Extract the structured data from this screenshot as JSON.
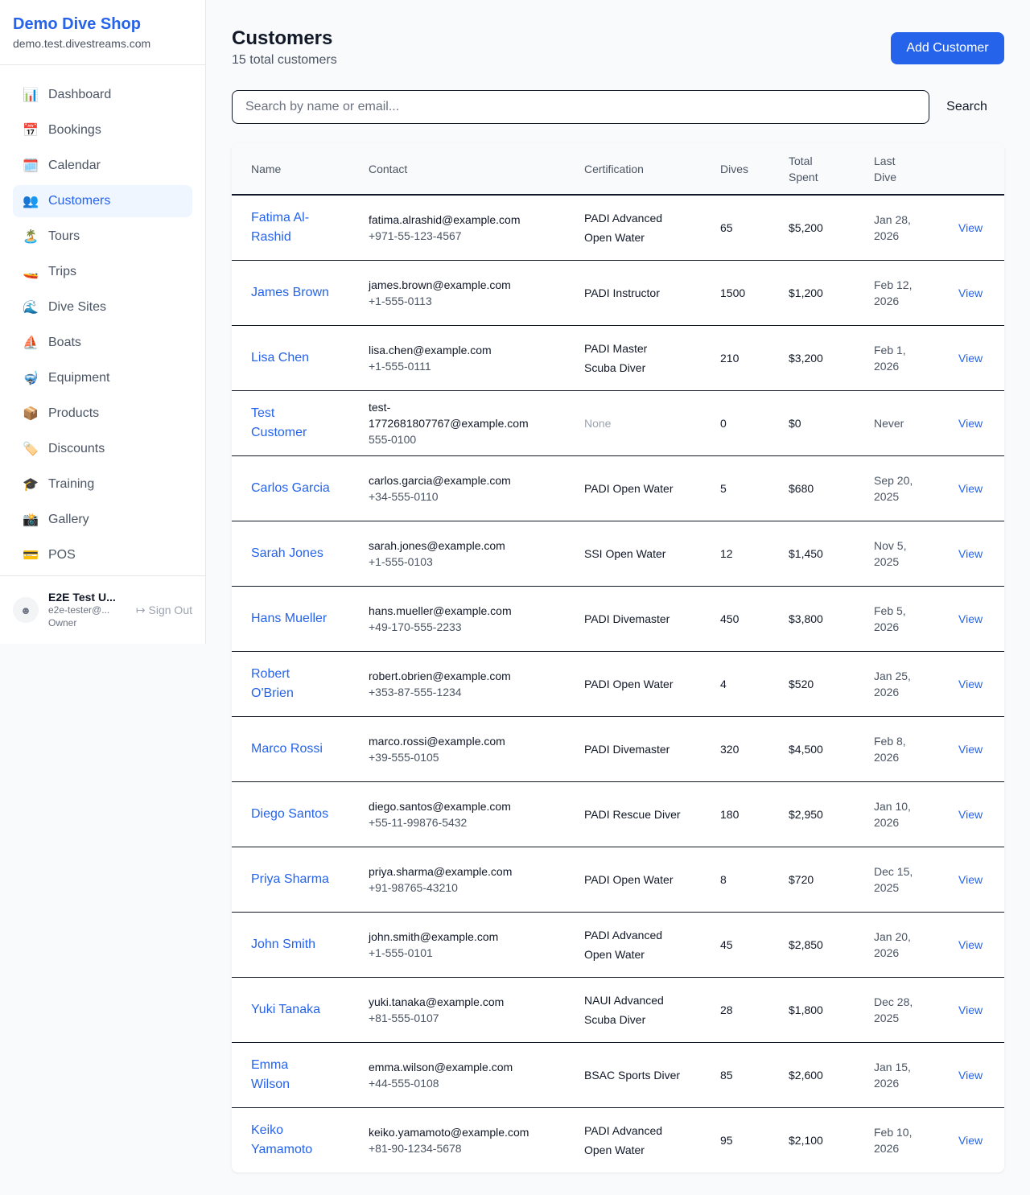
{
  "sidebar": {
    "brand": "Demo Dive Shop",
    "domain": "demo.test.divestreams.com",
    "items": [
      {
        "label": "Dashboard",
        "icon": "📊",
        "icon_name": "bar-chart-icon"
      },
      {
        "label": "Bookings",
        "icon": "📅",
        "icon_name": "calendar-date-icon"
      },
      {
        "label": "Calendar",
        "icon": "🗓️",
        "icon_name": "calendar-icon"
      },
      {
        "label": "Customers",
        "icon": "👥",
        "icon_name": "users-icon",
        "active": true
      },
      {
        "label": "Tours",
        "icon": "🏝️",
        "icon_name": "island-icon"
      },
      {
        "label": "Trips",
        "icon": "🚤",
        "icon_name": "speedboat-icon"
      },
      {
        "label": "Dive Sites",
        "icon": "🌊",
        "icon_name": "wave-icon"
      },
      {
        "label": "Boats",
        "icon": "⛵",
        "icon_name": "sailboat-icon"
      },
      {
        "label": "Equipment",
        "icon": "🤿",
        "icon_name": "diving-mask-icon"
      },
      {
        "label": "Products",
        "icon": "📦",
        "icon_name": "package-icon"
      },
      {
        "label": "Discounts",
        "icon": "🏷️",
        "icon_name": "tag-icon"
      },
      {
        "label": "Training",
        "icon": "🎓",
        "icon_name": "graduation-cap-icon"
      },
      {
        "label": "Gallery",
        "icon": "📸",
        "icon_name": "camera-icon"
      },
      {
        "label": "POS",
        "icon": "💳",
        "icon_name": "credit-card-icon"
      }
    ],
    "user": {
      "name": "E2E Test U...",
      "email": "e2e-tester@...",
      "role": "Owner",
      "sign_out": "Sign Out"
    }
  },
  "header": {
    "title": "Customers",
    "subtitle": "15 total customers",
    "add_label": "Add Customer",
    "search_placeholder": "Search by name or email...",
    "search_label": "Search"
  },
  "table": {
    "columns": [
      "Name",
      "Contact",
      "Certification",
      "Dives",
      "Total Spent",
      "Last Dive",
      ""
    ],
    "view_label": "View",
    "rows": [
      {
        "name": "Fatima Al-Rashid",
        "email": "fatima.alrashid@example.com",
        "phone": "+971-55-123-4567",
        "cert": "PADI Advanced Open Water",
        "dives": "65",
        "spent": "$5,200",
        "last": "Jan 28, 2026"
      },
      {
        "name": "James Brown",
        "email": "james.brown@example.com",
        "phone": "+1-555-0113",
        "cert": "PADI Instructor",
        "dives": "1500",
        "spent": "$1,200",
        "last": "Feb 12, 2026"
      },
      {
        "name": "Lisa Chen",
        "email": "lisa.chen@example.com",
        "phone": "+1-555-0111",
        "cert": "PADI Master Scuba Diver",
        "dives": "210",
        "spent": "$3,200",
        "last": "Feb 1, 2026"
      },
      {
        "name": "Test Customer",
        "email": "test-1772681807767@example.com",
        "phone": "555-0100",
        "cert": "None",
        "dives": "0",
        "spent": "$0",
        "last": "Never"
      },
      {
        "name": "Carlos Garcia",
        "email": "carlos.garcia@example.com",
        "phone": "+34-555-0110",
        "cert": "PADI Open Water",
        "dives": "5",
        "spent": "$680",
        "last": "Sep 20, 2025"
      },
      {
        "name": "Sarah Jones",
        "email": "sarah.jones@example.com",
        "phone": "+1-555-0103",
        "cert": "SSI Open Water",
        "dives": "12",
        "spent": "$1,450",
        "last": "Nov 5, 2025"
      },
      {
        "name": "Hans Mueller",
        "email": "hans.mueller@example.com",
        "phone": "+49-170-555-2233",
        "cert": "PADI Divemaster",
        "dives": "450",
        "spent": "$3,800",
        "last": "Feb 5, 2026"
      },
      {
        "name": "Robert O'Brien",
        "email": "robert.obrien@example.com",
        "phone": "+353-87-555-1234",
        "cert": "PADI Open Water",
        "dives": "4",
        "spent": "$520",
        "last": "Jan 25, 2026"
      },
      {
        "name": "Marco Rossi",
        "email": "marco.rossi@example.com",
        "phone": "+39-555-0105",
        "cert": "PADI Divemaster",
        "dives": "320",
        "spent": "$4,500",
        "last": "Feb 8, 2026"
      },
      {
        "name": "Diego Santos",
        "email": "diego.santos@example.com",
        "phone": "+55-11-99876-5432",
        "cert": "PADI Rescue Diver",
        "dives": "180",
        "spent": "$2,950",
        "last": "Jan 10, 2026"
      },
      {
        "name": "Priya Sharma",
        "email": "priya.sharma@example.com",
        "phone": "+91-98765-43210",
        "cert": "PADI Open Water",
        "dives": "8",
        "spent": "$720",
        "last": "Dec 15, 2025"
      },
      {
        "name": "John Smith",
        "email": "john.smith@example.com",
        "phone": "+1-555-0101",
        "cert": "PADI Advanced Open Water",
        "dives": "45",
        "spent": "$2,850",
        "last": "Jan 20, 2026"
      },
      {
        "name": "Yuki Tanaka",
        "email": "yuki.tanaka@example.com",
        "phone": "+81-555-0107",
        "cert": "NAUI Advanced Scuba Diver",
        "dives": "28",
        "spent": "$1,800",
        "last": "Dec 28, 2025"
      },
      {
        "name": "Emma Wilson",
        "email": "emma.wilson@example.com",
        "phone": "+44-555-0108",
        "cert": "BSAC Sports Diver",
        "dives": "85",
        "spent": "$2,600",
        "last": "Jan 15, 2026"
      },
      {
        "name": "Keiko Yamamoto",
        "email": "keiko.yamamoto@example.com",
        "phone": "+81-90-1234-5678",
        "cert": "PADI Advanced Open Water",
        "dives": "95",
        "spent": "$2,100",
        "last": "Feb 10, 2026"
      }
    ]
  }
}
